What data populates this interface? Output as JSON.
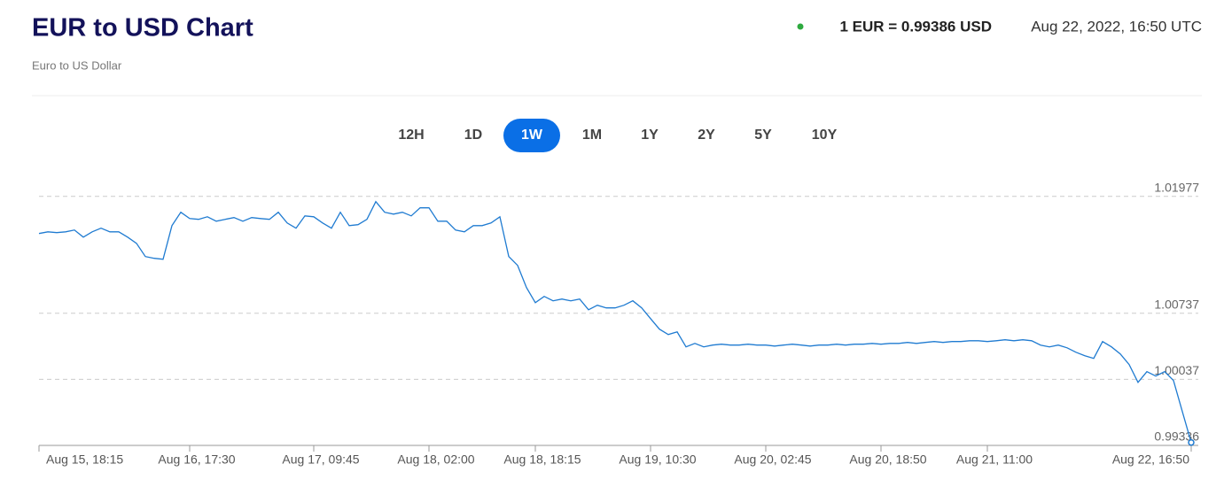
{
  "header": {
    "title": "EUR to USD Chart",
    "subtitle": "Euro to US Dollar",
    "rate": "1 EUR = 0.99386 USD",
    "timestamp": "Aug 22, 2022, 16:50 UTC"
  },
  "range_selector": {
    "options": [
      "12H",
      "1D",
      "1W",
      "1M",
      "1Y",
      "2Y",
      "5Y",
      "10Y"
    ],
    "active": "1W"
  },
  "chart_data": {
    "type": "line",
    "series": [
      {
        "name": "EUR/USD",
        "color": "#1f7bd1",
        "values": [
          1.01583,
          1.01601,
          1.01592,
          1.01601,
          1.0162,
          1.01545,
          1.01601,
          1.01639,
          1.01601,
          1.01601,
          1.01545,
          1.01479,
          1.01339,
          1.0132,
          1.0131,
          1.01667,
          1.01808,
          1.01742,
          1.01733,
          1.01761,
          1.01714,
          1.01733,
          1.01752,
          1.01714,
          1.01752,
          1.01742,
          1.01733,
          1.01808,
          1.01695,
          1.01639,
          1.0177,
          1.01761,
          1.01695,
          1.01639,
          1.01808,
          1.01667,
          1.01677,
          1.01733,
          1.01921,
          1.01808,
          1.01789,
          1.01808,
          1.0177,
          1.01855,
          1.01855,
          1.01714,
          1.01714,
          1.0162,
          1.01601,
          1.01667,
          1.01667,
          1.01695,
          1.01761,
          1.01339,
          1.01245,
          1.0101,
          1.0085,
          1.00916,
          1.00869,
          1.00888,
          1.00869,
          1.00888,
          1.00775,
          1.00822,
          1.00794,
          1.00794,
          1.00822,
          1.00869,
          1.00794,
          1.00681,
          1.00569,
          1.00512,
          1.0054,
          1.00381,
          1.00418,
          1.00381,
          1.004,
          1.00409,
          1.004,
          1.004,
          1.00409,
          1.004,
          1.004,
          1.0039,
          1.004,
          1.00409,
          1.004,
          1.0039,
          1.004,
          1.004,
          1.00409,
          1.004,
          1.00409,
          1.00409,
          1.00418,
          1.00409,
          1.00418,
          1.00418,
          1.00428,
          1.00418,
          1.00428,
          1.00437,
          1.00428,
          1.00437,
          1.00437,
          1.00446,
          1.00446,
          1.00437,
          1.00446,
          1.00456,
          1.00446,
          1.00456,
          1.00446,
          1.004,
          1.00381,
          1.004,
          1.00371,
          1.00324,
          1.00287,
          1.00259,
          1.00437,
          1.00381,
          1.00306,
          1.00193,
          1.00005,
          1.00118,
          1.00071,
          1.00118,
          1.00024,
          0.99695,
          0.99367
        ]
      }
    ],
    "xlim": [
      0,
      130
    ],
    "xticks": [
      {
        "value": 0,
        "label": "Aug 15, 18:15"
      },
      {
        "value": 17,
        "label": "Aug 16, 17:30"
      },
      {
        "value": 31,
        "label": "Aug 17, 09:45"
      },
      {
        "value": 44,
        "label": "Aug 18, 02:00"
      },
      {
        "value": 56,
        "label": "Aug 18, 18:15"
      },
      {
        "value": 69,
        "label": "Aug 19, 10:30"
      },
      {
        "value": 82,
        "label": "Aug 20, 02:45"
      },
      {
        "value": 95,
        "label": "Aug 20, 18:50"
      },
      {
        "value": 107,
        "label": "Aug 21, 11:00"
      },
      {
        "value": 130,
        "label": "Aug 22, 16:50"
      }
    ],
    "ylim": [
      0.99336,
      1.022
    ],
    "yticks": [
      0.99336,
      1.00037,
      1.00737,
      1.01977
    ],
    "grid": true
  }
}
